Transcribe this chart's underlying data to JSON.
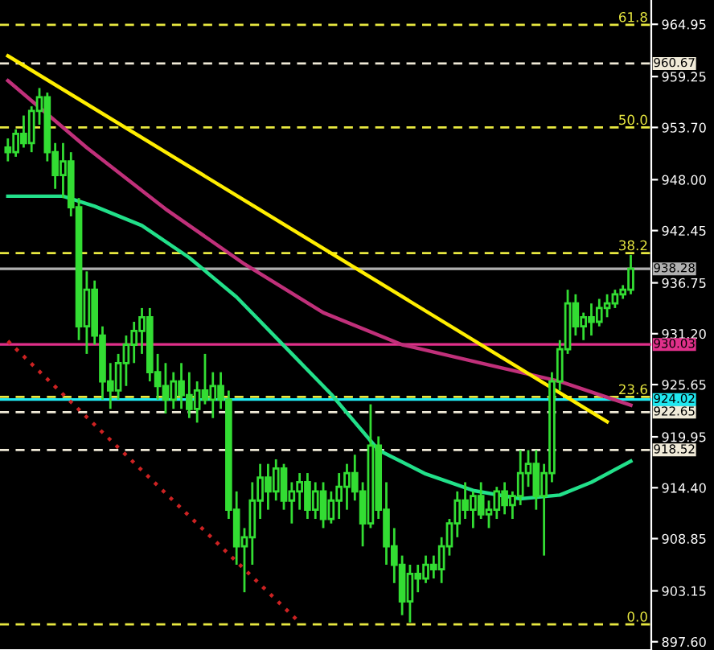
{
  "chart_data": {
    "type": "candlestick",
    "categories": [
      null,
      null,
      null,
      null,
      null,
      null,
      null,
      null,
      null,
      null,
      null,
      null,
      null,
      null,
      null,
      null,
      null,
      null,
      null,
      null,
      null,
      null,
      null,
      null,
      null,
      null,
      null,
      null,
      null,
      null,
      null,
      null,
      null,
      null,
      null,
      null,
      null,
      null,
      null,
      null,
      null,
      null,
      null,
      null,
      null,
      null,
      null,
      null,
      null,
      null,
      null,
      null,
      null,
      null,
      null,
      null,
      null,
      null,
      null,
      null,
      null,
      null,
      null,
      null,
      null,
      null,
      null,
      null,
      null,
      null,
      null,
      null,
      null,
      null,
      null,
      null,
      null,
      null,
      null,
      null
    ],
    "color": "#33dd33",
    "ohlc": [
      [
        951.5,
        952.5,
        950,
        951
      ],
      [
        951,
        953.5,
        950.5,
        953
      ],
      [
        953,
        955,
        951.5,
        952
      ],
      [
        952,
        956,
        951,
        955.5
      ],
      [
        955.5,
        958,
        954,
        957
      ],
      [
        957,
        957.5,
        950,
        951
      ],
      [
        951,
        952,
        947,
        948.5
      ],
      [
        948.5,
        952,
        946,
        950
      ],
      [
        950,
        951,
        944,
        945
      ],
      [
        945,
        946,
        930.5,
        932
      ],
      [
        932,
        938,
        929,
        936
      ],
      [
        936,
        937,
        930,
        931
      ],
      [
        931,
        932,
        924,
        926
      ],
      [
        926,
        928,
        923,
        925
      ],
      [
        925,
        929,
        924,
        928
      ],
      [
        928,
        931,
        925.5,
        930
      ],
      [
        930,
        932.5,
        928,
        931.5
      ],
      [
        931.5,
        934,
        929,
        933
      ],
      [
        933,
        934,
        926,
        927
      ],
      [
        927,
        929,
        924,
        925.5
      ],
      [
        925.5,
        928,
        922.5,
        924
      ],
      [
        924,
        927,
        923,
        926
      ],
      [
        926,
        928,
        923,
        924.5
      ],
      [
        924.5,
        927,
        922,
        923
      ],
      [
        923,
        926,
        921.5,
        925
      ],
      [
        925,
        929,
        923.5,
        924
      ],
      [
        924,
        927,
        922,
        925.5
      ],
      [
        925.5,
        927,
        923,
        924
      ],
      [
        924,
        925,
        911,
        912
      ],
      [
        912,
        914,
        906,
        908
      ],
      [
        908,
        910,
        903,
        909
      ],
      [
        909,
        915,
        906,
        913
      ],
      [
        913,
        917,
        911,
        915.5
      ],
      [
        915.5,
        917,
        912,
        914
      ],
      [
        914,
        917.5,
        913,
        916.5
      ],
      [
        916.5,
        917,
        912,
        913
      ],
      [
        913,
        915,
        910.5,
        914
      ],
      [
        914,
        916,
        912,
        915
      ],
      [
        915,
        916,
        911,
        912
      ],
      [
        912,
        915,
        911,
        914
      ],
      [
        914,
        915,
        910,
        911
      ],
      [
        911,
        914,
        910.5,
        913
      ],
      [
        913,
        916,
        911,
        914.5
      ],
      [
        914.5,
        917,
        912,
        916
      ],
      [
        916,
        918,
        913,
        914
      ],
      [
        914,
        915,
        908,
        910.5
      ],
      [
        910.5,
        923.5,
        910,
        919
      ],
      [
        919,
        920,
        911,
        912
      ],
      [
        912,
        915,
        906,
        908
      ],
      [
        908,
        910,
        904,
        906
      ],
      [
        906,
        907,
        900.5,
        902
      ],
      [
        902,
        906,
        899.7,
        905
      ],
      [
        905,
        906,
        903,
        904.5
      ],
      [
        904.5,
        907,
        904,
        906
      ],
      [
        906,
        907,
        904.5,
        905.5
      ],
      [
        905.5,
        909,
        904,
        908
      ],
      [
        908,
        911,
        907,
        910.5
      ],
      [
        910.5,
        914,
        909,
        913
      ],
      [
        913,
        915,
        911,
        912
      ],
      [
        912,
        914,
        910,
        913.5
      ],
      [
        913.5,
        915,
        911,
        911.5
      ],
      [
        911.5,
        913,
        910,
        912
      ],
      [
        912,
        914.5,
        911,
        914
      ],
      [
        914,
        915,
        911.5,
        912.5
      ],
      [
        912.5,
        914,
        911,
        913.5
      ],
      [
        913.5,
        918.5,
        912.5,
        916
      ],
      [
        916,
        918.5,
        914.5,
        917
      ],
      [
        917,
        918.5,
        912,
        913.5
      ],
      [
        913.5,
        917,
        907,
        916
      ],
      [
        916,
        927,
        915,
        926
      ],
      [
        926,
        930.5,
        925,
        929.5
      ],
      [
        929.5,
        936,
        929,
        934.5
      ],
      [
        934.5,
        935.5,
        931,
        932
      ],
      [
        932,
        933.5,
        930.5,
        933
      ],
      [
        933,
        934.5,
        931,
        932.5
      ],
      [
        932.5,
        935,
        932,
        934
      ],
      [
        934,
        935.5,
        933,
        934.5
      ],
      [
        934.5,
        936,
        934,
        935.5
      ],
      [
        935.5,
        936.5,
        935,
        936
      ],
      [
        936,
        939.8,
        935.5,
        938.28
      ]
    ],
    "series": [
      {
        "type": "line",
        "color": "#c0307a",
        "line_style": "solid",
        "values": [
          958.8,
          null,
          null,
          null,
          null,
          null,
          null,
          null,
          null,
          null,
          951.5,
          null,
          null,
          null,
          null,
          null,
          null,
          null,
          null,
          null,
          944.8,
          null,
          null,
          null,
          null,
          null,
          null,
          null,
          null,
          null,
          938.8,
          null,
          null,
          null,
          null,
          null,
          null,
          null,
          null,
          null,
          933.5,
          null,
          null,
          null,
          null,
          null,
          null,
          null,
          null,
          null,
          930,
          null,
          null,
          null,
          null,
          null,
          null,
          null,
          null,
          null,
          928,
          null,
          null,
          null,
          null,
          null,
          null,
          null,
          null,
          null,
          926,
          null,
          null,
          null,
          null,
          null,
          null,
          null,
          null,
          923.4
        ]
      },
      {
        "type": "line",
        "color": "#22e08a",
        "line_style": "solid",
        "values": [
          946.2,
          null,
          null,
          null,
          null,
          null,
          null,
          946.2,
          null,
          null,
          null,
          945.1,
          null,
          null,
          null,
          null,
          null,
          943,
          null,
          null,
          null,
          null,
          null,
          939.5,
          null,
          null,
          null,
          null,
          null,
          935.2,
          null,
          null,
          null,
          null,
          null,
          929.9,
          null,
          null,
          null,
          null,
          null,
          924.6,
          null,
          null,
          null,
          null,
          null,
          918.5,
          null,
          null,
          null,
          null,
          null,
          915.9,
          null,
          null,
          null,
          null,
          null,
          914.1,
          null,
          null,
          null,
          null,
          null,
          913.2,
          null,
          null,
          null,
          null,
          913.6,
          null,
          null,
          null,
          915,
          null,
          null,
          null,
          null,
          917.3
        ]
      },
      {
        "type": "line",
        "color": "#ffee00",
        "line_style": "solid",
        "values": [
          961.5,
          null,
          null,
          null,
          null,
          null,
          null,
          null,
          null,
          null,
          null,
          null,
          null,
          null,
          null,
          null,
          null,
          null,
          null,
          null,
          null,
          null,
          null,
          null,
          null,
          null,
          null,
          null,
          null,
          null,
          null,
          null,
          null,
          null,
          null,
          null,
          null,
          null,
          null,
          null,
          null,
          null,
          null,
          null,
          null,
          null,
          null,
          null,
          null,
          null,
          null,
          null,
          null,
          null,
          null,
          null,
          null,
          null,
          null,
          null,
          null,
          null,
          null,
          null,
          null,
          null,
          null,
          null,
          null,
          null,
          null,
          null,
          null,
          null,
          null,
          null,
          921.6,
          null,
          null,
          null
        ]
      },
      {
        "type": "line",
        "color": "#cc2222",
        "line_style": "dotted",
        "values": [
          930.4,
          null,
          null,
          null,
          null,
          null,
          null,
          null,
          null,
          null,
          null,
          null,
          null,
          null,
          null,
          null,
          null,
          null,
          null,
          null,
          null,
          null,
          null,
          null,
          null,
          null,
          null,
          null,
          null,
          null,
          null,
          null,
          null,
          null,
          null,
          null,
          null,
          899.7,
          null,
          null,
          null,
          null,
          null,
          null,
          null,
          null,
          null,
          null,
          null,
          null,
          null,
          null,
          null,
          null,
          null,
          null,
          null,
          null,
          null,
          null,
          null,
          null,
          null,
          null,
          null,
          null,
          null,
          null,
          null,
          null,
          null,
          null,
          null,
          null,
          null,
          null,
          null,
          null,
          null,
          null
        ]
      }
    ],
    "annotations": [
      {
        "text": "61.8",
        "y": 964.9
      },
      {
        "text": "50.0",
        "y": 953.7
      },
      {
        "text": "38.2",
        "y": 940.0
      },
      {
        "text": "23.6",
        "y": 924.3
      },
      {
        "text": "0.0",
        "y": 899.5
      }
    ],
    "ref_lines": [
      {
        "axis": "y",
        "value": 964.9,
        "color": "#e8e840",
        "line_style": "dashed"
      },
      {
        "axis": "y",
        "value": 953.7,
        "color": "#e8e840",
        "line_style": "dashed"
      },
      {
        "axis": "y",
        "value": 940.0,
        "color": "#e8e840",
        "line_style": "dashed"
      },
      {
        "axis": "y",
        "value": 924.3,
        "color": "#e8e840",
        "line_style": "dashed"
      },
      {
        "axis": "y",
        "value": 899.5,
        "color": "#e8e840",
        "line_style": "dashed"
      },
      {
        "axis": "y",
        "value": 960.67,
        "label": "960.67",
        "color": "#f0ead8",
        "line_style": "dashed"
      },
      {
        "axis": "y",
        "value": 922.65,
        "label": "922.65",
        "color": "#f0ead8",
        "line_style": "dashed"
      },
      {
        "axis": "y",
        "value": 918.52,
        "label": "918.52",
        "color": "#f0ead8",
        "line_style": "dashed"
      },
      {
        "axis": "y",
        "value": 938.28,
        "label": "938.28",
        "color": "#b0b0b0",
        "line_style": "solid"
      },
      {
        "axis": "y",
        "value": 930.03,
        "label": "930.03",
        "color": "#e0308a",
        "line_style": "solid"
      },
      {
        "axis": "y",
        "value": 924.02,
        "label": "924.02",
        "color": "#20e8f0",
        "line_style": "solid"
      }
    ],
    "ylim": [
      896.7,
      967.6
    ],
    "yticks": [
      964.95,
      959.25,
      {
        "value": 953.7,
        "label": "953.70"
      },
      {
        "value": 948.0,
        "label": "948.00"
      },
      942.45,
      936.75,
      {
        "value": 931.2,
        "label": "931.20"
      },
      925.65,
      919.95,
      {
        "value": 914.4,
        "label": "914.40"
      },
      908.85,
      903.15,
      {
        "value": 897.6,
        "label": "897.60"
      }
    ],
    "tick_labels": "y",
    "grid": false,
    "legend": false
  }
}
